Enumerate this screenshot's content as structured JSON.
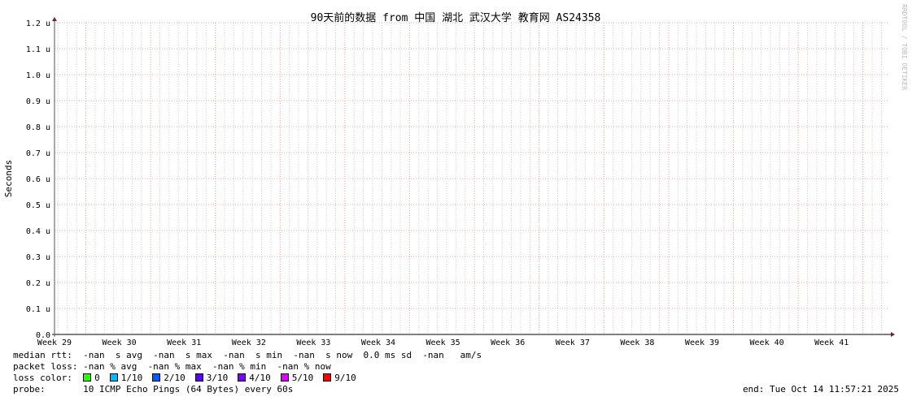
{
  "chart_data": {
    "type": "line",
    "title": "90天前的数据 from 中国 湖北 武汉大学 教育网 AS24358",
    "ylabel": "Seconds",
    "xlabel": "",
    "ylim": [
      0,
      1.2
    ],
    "y_unit": "u",
    "yticks": [
      "0.0",
      "0.1 u",
      "0.2 u",
      "0.3 u",
      "0.4 u",
      "0.5 u",
      "0.6 u",
      "0.7 u",
      "0.8 u",
      "0.9 u",
      "1.0 u",
      "1.1 u",
      "1.2 u"
    ],
    "xticks": [
      "Week 29",
      "Week 30",
      "Week 31",
      "Week 32",
      "Week 33",
      "Week 34",
      "Week 35",
      "Week 36",
      "Week 37",
      "Week 38",
      "Week 39",
      "Week 40",
      "Week 41"
    ],
    "series": [],
    "grid": true,
    "watermark": "RRDTOOL / TOBI OETIKER"
  },
  "legend": {
    "median_rtt": "median rtt:  -nan  s avg  -nan  s max  -nan  s min  -nan  s now  0.0 ms sd  -nan   am/s",
    "packet_loss": "packet loss: -nan % avg  -nan % max  -nan % min  -nan % now",
    "loss_color_label": "loss color:  ",
    "loss_colors": [
      {
        "label": "0",
        "color": "#26ff00"
      },
      {
        "label": "1/10",
        "color": "#00b8ff"
      },
      {
        "label": "2/10",
        "color": "#0059ff"
      },
      {
        "label": "3/10",
        "color": "#5e00ff"
      },
      {
        "label": "4/10",
        "color": "#7e00ff"
      },
      {
        "label": "5/10",
        "color": "#dd00ff"
      },
      {
        "label": "9/10",
        "color": "#ff0000"
      }
    ],
    "probe": "probe:       10 ICMP Echo Pings (64 Bytes) every 60s",
    "end": "end: Tue Oct 14 11:57:21 2025"
  }
}
